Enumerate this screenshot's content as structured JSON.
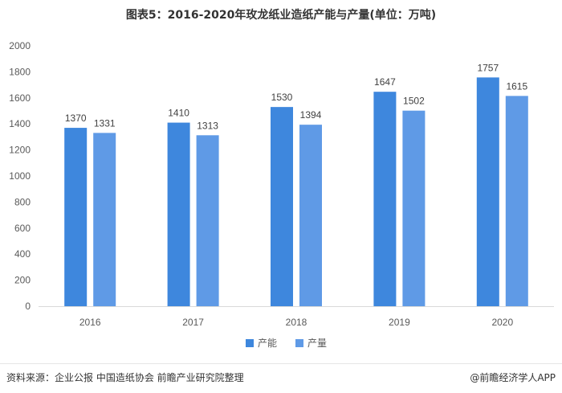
{
  "title": "图表5：2016-2020年玫龙纸业造纸产能与产量(单位：万吨)",
  "footer": {
    "source": "资料来源：企业公报 中国造纸协会 前瞻产业研究院整理",
    "brand": "@前瞻经济学人APP"
  },
  "chart_data": {
    "type": "bar",
    "title": "图表5：2016-2020年玫龙纸业造纸产能与产量(单位：万吨)",
    "categories": [
      "2016",
      "2017",
      "2018",
      "2019",
      "2020"
    ],
    "series": [
      {
        "name": "产能",
        "values": [
          1370,
          1410,
          1530,
          1647,
          1757
        ],
        "color": "#3e87dd"
      },
      {
        "name": "产量",
        "values": [
          1331,
          1313,
          1394,
          1502,
          1615
        ],
        "color": "#5f9ae6"
      }
    ],
    "ylim": [
      0,
      2000
    ],
    "yticks": [
      0,
      200,
      400,
      600,
      800,
      1000,
      1200,
      1400,
      1600,
      1800,
      2000
    ],
    "grid": false,
    "legend": "bottom"
  }
}
